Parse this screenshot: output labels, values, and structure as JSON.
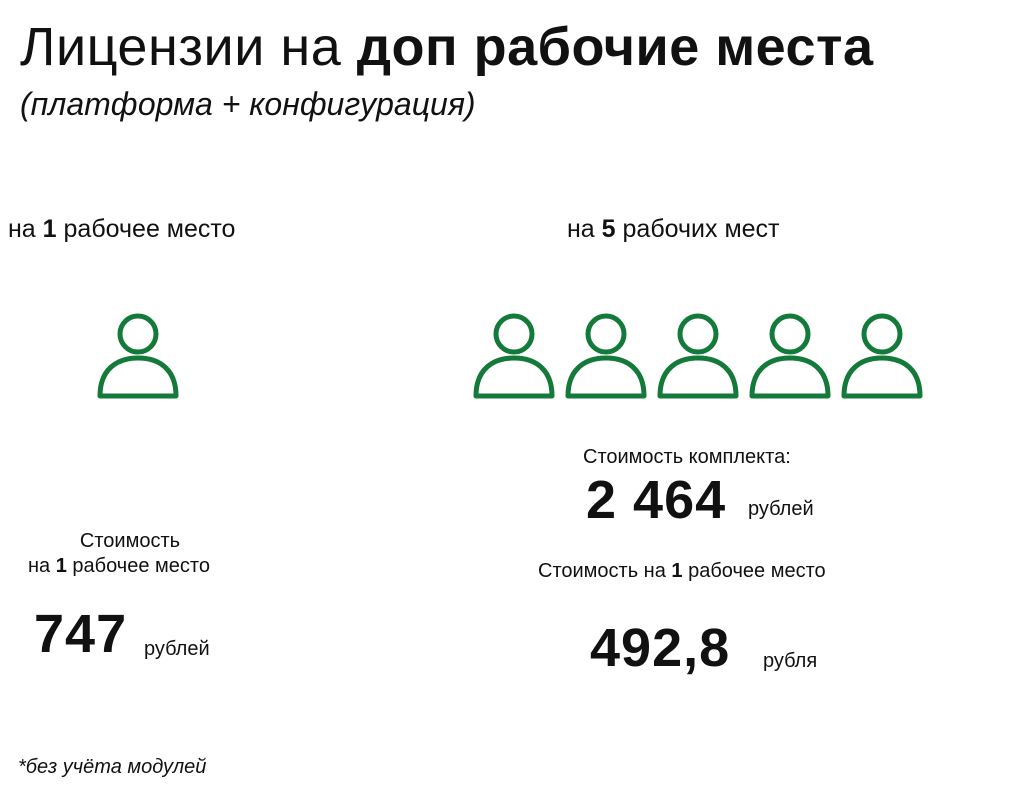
{
  "title": {
    "light": "Лицензии на",
    "bold": "доп рабочие места"
  },
  "subtitle": "(платформа + конфигурация)",
  "left": {
    "heading": {
      "pre": "на",
      "num": "1",
      "post": "рабочее место"
    },
    "people_count": 1,
    "cost_label_line1": "Стоимость",
    "cost_label_line2": {
      "pre": "на",
      "num": "1",
      "post": "рабочее место"
    },
    "price": "747",
    "unit": "рублей"
  },
  "right": {
    "heading": {
      "pre": "на",
      "num": "5",
      "post": "рабочих мест"
    },
    "people_count": 5,
    "set_cost_label": "Стоимость  комплекта:",
    "set_price": "2 464",
    "set_unit": "рублей",
    "per_place_label": {
      "pre": "Стоимость на",
      "num": "1",
      "post": "рабочее место"
    },
    "per_place_price": "492,8",
    "per_place_unit": "рубля"
  },
  "footnote": "*без учёта модулей",
  "colors": {
    "icon_stroke": "#137a3a",
    "text": "#111111"
  },
  "icon": "person-outline-icon"
}
